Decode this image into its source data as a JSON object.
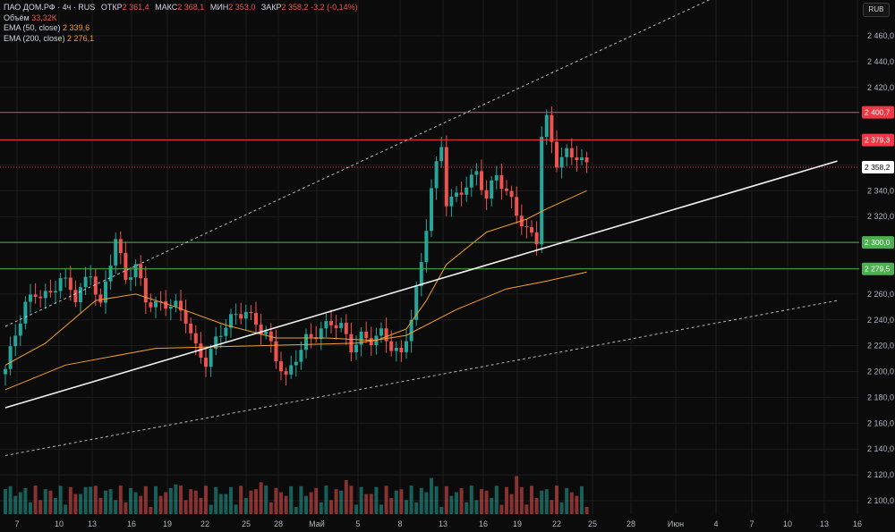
{
  "legend": {
    "title": "ПАО ДОМ.РФ · 4ч · RUS",
    "open_label": "ОТКР",
    "open_value": "2 361,4",
    "high_label": "МАКС",
    "high_value": "2 368,1",
    "low_label": "МИН",
    "low_value": "2 353,0",
    "close_label": "ЗАКР",
    "close_value": "2 358,2",
    "change": "-3,2 (-0,14%)",
    "volume_label": "Объём",
    "volume_value": "33,32K",
    "ema50_label": "EMA (50, close)",
    "ema50_value": "2 339,6",
    "ema200_label": "EMA (200, close)",
    "ema200_value": "2 276,1"
  },
  "currency_button": "RUB",
  "colors": {
    "background": "#0b0b0b",
    "up": "#26a69a",
    "down": "#ef5350",
    "resistance": "#f23645",
    "support": "#4caf50",
    "ema": "#f59f2b",
    "trendline": "#ffffff",
    "grid": "#1c1c1c"
  },
  "chart_data": {
    "type": "candlestick",
    "y_axis": {
      "ticks": [
        2100,
        2120,
        2140,
        2160,
        2180,
        2200,
        2220,
        2240,
        2260,
        2280,
        2300,
        2320,
        2340,
        2360,
        2380,
        2400,
        2420,
        2440,
        2460
      ],
      "tick_labels": [
        "2 100,0",
        "2 120,0",
        "2 140,0",
        "2 160,0",
        "2 180,0",
        "2 200,0",
        "2 220,0",
        "2 240,0",
        "2 260,0",
        "2 280,0",
        "2 300,0",
        "2 320,0",
        "2 340,0",
        "2 360,0",
        "2 380,0",
        "2 400,0",
        "2 420,0",
        "2 440,0",
        "2 460,0"
      ],
      "range": [
        2092,
        2476
      ]
    },
    "x_axis": {
      "ticks": [
        "7",
        "10",
        "13",
        "16",
        "19",
        "22",
        "25",
        "28",
        "Май",
        "5",
        "8",
        "13",
        "16",
        "19",
        "22",
        "25",
        "28",
        "Июн",
        "4",
        "7",
        "10",
        "13",
        "16"
      ]
    },
    "price_levels": [
      {
        "value": 2400.7,
        "label": "2 400,7",
        "kind": "resistance"
      },
      {
        "value": 2379.3,
        "label": "2 379,3",
        "kind": "resistance"
      },
      {
        "value": 2358.2,
        "label": "2 358,2",
        "kind": "last"
      },
      {
        "value": 2300.0,
        "label": "2 300,0",
        "kind": "support"
      },
      {
        "value": 2279.5,
        "label": "2 279,5",
        "kind": "support"
      }
    ],
    "trend_lines": [
      {
        "style": "solid",
        "from": {
          "i": 0,
          "p": 2172
        },
        "to": {
          "i": 166,
          "p": 2363
        }
      },
      {
        "style": "dashed",
        "from": {
          "i": 0,
          "p": 2235
        },
        "to": {
          "i": 150,
          "p": 2505
        }
      },
      {
        "style": "dashed",
        "from": {
          "i": 0,
          "p": 2135
        },
        "to": {
          "i": 166,
          "p": 2255
        }
      }
    ],
    "price_path": [
      [
        0,
        2202
      ],
      [
        4,
        2250
      ],
      [
        6,
        2262
      ],
      [
        9,
        2262
      ],
      [
        11,
        2272
      ],
      [
        14,
        2255
      ],
      [
        17,
        2278
      ],
      [
        19,
        2253
      ],
      [
        22,
        2302
      ],
      [
        24,
        2268
      ],
      [
        26,
        2282
      ],
      [
        28,
        2258
      ],
      [
        30,
        2254
      ],
      [
        32,
        2251
      ],
      [
        34,
        2248
      ],
      [
        36,
        2240
      ],
      [
        38,
        2220
      ],
      [
        40,
        2210
      ],
      [
        42,
        2224
      ],
      [
        45,
        2238
      ],
      [
        48,
        2248
      ],
      [
        50,
        2240
      ],
      [
        52,
        2230
      ],
      [
        54,
        2208
      ],
      [
        56,
        2192
      ],
      [
        58,
        2212
      ],
      [
        60,
        2228
      ],
      [
        63,
        2232
      ],
      [
        65,
        2235
      ],
      [
        67,
        2233
      ],
      [
        69,
        2220
      ],
      [
        71,
        2230
      ],
      [
        73,
        2225
      ],
      [
        75,
        2227
      ],
      [
        77,
        2217
      ],
      [
        79,
        2213
      ],
      [
        81,
        2245
      ],
      [
        83,
        2285
      ],
      [
        85,
        2340
      ],
      [
        87,
        2372
      ],
      [
        88,
        2330
      ],
      [
        90,
        2337
      ],
      [
        92,
        2348
      ],
      [
        94,
        2354
      ],
      [
        96,
        2332
      ],
      [
        98,
        2350
      ],
      [
        101,
        2334
      ],
      [
        104,
        2310
      ],
      [
        106,
        2300
      ],
      [
        107,
        2380
      ],
      [
        108,
        2392
      ],
      [
        109,
        2376
      ],
      [
        110,
        2362
      ],
      [
        112,
        2372
      ],
      [
        114,
        2369
      ],
      [
        116,
        2358
      ]
    ],
    "ema50": [
      [
        0,
        2205
      ],
      [
        8,
        2222
      ],
      [
        18,
        2255
      ],
      [
        26,
        2260
      ],
      [
        34,
        2250
      ],
      [
        44,
        2236
      ],
      [
        54,
        2226
      ],
      [
        64,
        2226
      ],
      [
        74,
        2224
      ],
      [
        80,
        2233
      ],
      [
        84,
        2255
      ],
      [
        88,
        2283
      ],
      [
        96,
        2308
      ],
      [
        104,
        2318
      ],
      [
        108,
        2326
      ],
      [
        116,
        2340
      ]
    ],
    "ema200": [
      [
        0,
        2186
      ],
      [
        12,
        2205
      ],
      [
        30,
        2218
      ],
      [
        50,
        2220
      ],
      [
        70,
        2222
      ],
      [
        80,
        2228
      ],
      [
        90,
        2248
      ],
      [
        100,
        2264
      ],
      [
        108,
        2270
      ],
      [
        116,
        2277
      ]
    ]
  }
}
